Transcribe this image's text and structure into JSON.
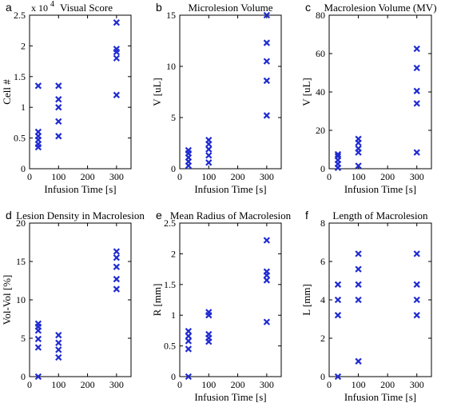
{
  "chart_data": [
    {
      "type": "scatter",
      "panel_letter": "a",
      "title": "Visual Score",
      "exponent_label": "x 10",
      "exponent_power": "4",
      "xlabel": "Infusion Time [s]",
      "ylabel": "Cell #",
      "xlim": [
        0,
        350
      ],
      "ylim": [
        0,
        2.5
      ],
      "xticks": [
        0,
        100,
        200,
        300
      ],
      "yticks": [
        0,
        0.5,
        1,
        1.5,
        2,
        2.5
      ],
      "ytick_labels": [
        "0",
        "0.5",
        "1",
        "1.5",
        "2",
        "2.5"
      ],
      "points": [
        {
          "x": 30,
          "y": 0.35
        },
        {
          "x": 30,
          "y": 0.4
        },
        {
          "x": 30,
          "y": 0.47
        },
        {
          "x": 30,
          "y": 0.53
        },
        {
          "x": 30,
          "y": 0.6
        },
        {
          "x": 30,
          "y": 1.35
        },
        {
          "x": 100,
          "y": 0.53
        },
        {
          "x": 100,
          "y": 0.77
        },
        {
          "x": 100,
          "y": 1.0
        },
        {
          "x": 100,
          "y": 1.13
        },
        {
          "x": 100,
          "y": 1.35
        },
        {
          "x": 300,
          "y": 1.2
        },
        {
          "x": 300,
          "y": 1.8
        },
        {
          "x": 300,
          "y": 1.9
        },
        {
          "x": 300,
          "y": 1.95
        },
        {
          "x": 300,
          "y": 2.38
        }
      ]
    },
    {
      "type": "scatter",
      "panel_letter": "b",
      "title": "Microlesion Volume",
      "xlabel": "Infusion Time [s]",
      "ylabel": "V [uL]",
      "xlim": [
        0,
        350
      ],
      "ylim": [
        0,
        15
      ],
      "xticks": [
        0,
        100,
        200,
        300
      ],
      "yticks": [
        0,
        5,
        10,
        15
      ],
      "ytick_labels": [
        "0",
        "5",
        "10",
        "15"
      ],
      "points": [
        {
          "x": 30,
          "y": 0.3
        },
        {
          "x": 30,
          "y": 0.7
        },
        {
          "x": 30,
          "y": 1.1
        },
        {
          "x": 30,
          "y": 1.5
        },
        {
          "x": 30,
          "y": 1.8
        },
        {
          "x": 100,
          "y": 0.6
        },
        {
          "x": 100,
          "y": 1.3
        },
        {
          "x": 100,
          "y": 1.9
        },
        {
          "x": 100,
          "y": 2.4
        },
        {
          "x": 100,
          "y": 2.8
        },
        {
          "x": 300,
          "y": 5.2
        },
        {
          "x": 300,
          "y": 8.6
        },
        {
          "x": 300,
          "y": 10.5
        },
        {
          "x": 300,
          "y": 12.3
        },
        {
          "x": 300,
          "y": 15.0
        }
      ]
    },
    {
      "type": "scatter",
      "panel_letter": "c",
      "title": "Macrolesion Volume (MV)",
      "xlabel": "Infusion Time [s]",
      "ylabel": "V [uL]",
      "xlim": [
        0,
        350
      ],
      "ylim": [
        0,
        80
      ],
      "xticks": [
        0,
        100,
        200,
        300
      ],
      "yticks": [
        0,
        20,
        40,
        60,
        80
      ],
      "ytick_labels": [
        "0",
        "20",
        "40",
        "60",
        "80"
      ],
      "points": [
        {
          "x": 30,
          "y": 0.5
        },
        {
          "x": 30,
          "y": 2.5
        },
        {
          "x": 30,
          "y": 4.5
        },
        {
          "x": 30,
          "y": 6.5
        },
        {
          "x": 30,
          "y": 7.5
        },
        {
          "x": 100,
          "y": 1.5
        },
        {
          "x": 100,
          "y": 8.5
        },
        {
          "x": 100,
          "y": 10.5
        },
        {
          "x": 100,
          "y": 13.5
        },
        {
          "x": 100,
          "y": 15.5
        },
        {
          "x": 300,
          "y": 8.5
        },
        {
          "x": 300,
          "y": 34.0
        },
        {
          "x": 300,
          "y": 40.5
        },
        {
          "x": 300,
          "y": 52.5
        },
        {
          "x": 300,
          "y": 62.5
        }
      ]
    },
    {
      "type": "scatter",
      "panel_letter": "d",
      "title": "Lesion Density in Macrolesion",
      "xlabel": "",
      "ylabel": "Vol-Vol [%]",
      "xlim": [
        0,
        350
      ],
      "ylim": [
        0,
        20
      ],
      "xticks": [
        0,
        100,
        200,
        300
      ],
      "yticks": [
        0,
        5,
        10,
        15,
        20
      ],
      "ytick_labels": [
        "0",
        "5",
        "10",
        "15",
        "20"
      ],
      "points": [
        {
          "x": 30,
          "y": 0.0
        },
        {
          "x": 30,
          "y": 3.8
        },
        {
          "x": 30,
          "y": 4.9
        },
        {
          "x": 30,
          "y": 6.0
        },
        {
          "x": 30,
          "y": 6.5
        },
        {
          "x": 30,
          "y": 6.9
        },
        {
          "x": 100,
          "y": 2.5
        },
        {
          "x": 100,
          "y": 3.5
        },
        {
          "x": 100,
          "y": 4.4
        },
        {
          "x": 100,
          "y": 5.4
        },
        {
          "x": 300,
          "y": 11.4
        },
        {
          "x": 300,
          "y": 12.7
        },
        {
          "x": 300,
          "y": 14.3
        },
        {
          "x": 300,
          "y": 15.5
        },
        {
          "x": 300,
          "y": 16.3
        }
      ]
    },
    {
      "type": "scatter",
      "panel_letter": "e",
      "title": "Mean Radius of Macrolesion",
      "xlabel": "Infusion Time [s]",
      "ylabel": "R [mm]",
      "xlim": [
        0,
        350
      ],
      "ylim": [
        0,
        2.5
      ],
      "xticks": [
        0,
        100,
        200,
        300
      ],
      "yticks": [
        0,
        0.5,
        1,
        1.5,
        2,
        2.5
      ],
      "ytick_labels": [
        "0",
        "0.5",
        "1",
        "1.5",
        "2",
        "2.5"
      ],
      "points": [
        {
          "x": 30,
          "y": 0.0
        },
        {
          "x": 30,
          "y": 0.45
        },
        {
          "x": 30,
          "y": 0.58
        },
        {
          "x": 30,
          "y": 0.66
        },
        {
          "x": 30,
          "y": 0.74
        },
        {
          "x": 100,
          "y": 0.57
        },
        {
          "x": 100,
          "y": 0.63
        },
        {
          "x": 100,
          "y": 0.69
        },
        {
          "x": 100,
          "y": 1.0
        },
        {
          "x": 100,
          "y": 1.05
        },
        {
          "x": 300,
          "y": 0.89
        },
        {
          "x": 300,
          "y": 1.57
        },
        {
          "x": 300,
          "y": 1.65
        },
        {
          "x": 300,
          "y": 1.71
        },
        {
          "x": 300,
          "y": 2.22
        }
      ]
    },
    {
      "type": "scatter",
      "panel_letter": "f",
      "title": "Length of Macrolesion",
      "xlabel": "Infusion Time [s]",
      "ylabel": "L [mm]",
      "xlim": [
        0,
        350
      ],
      "ylim": [
        0,
        8
      ],
      "xticks": [
        0,
        100,
        200,
        300
      ],
      "yticks": [
        0,
        2,
        4,
        6,
        8
      ],
      "ytick_labels": [
        "0",
        "2",
        "4",
        "6",
        "8"
      ],
      "points": [
        {
          "x": 30,
          "y": 0.0
        },
        {
          "x": 30,
          "y": 3.2
        },
        {
          "x": 30,
          "y": 4.0
        },
        {
          "x": 30,
          "y": 4.8
        },
        {
          "x": 100,
          "y": 0.8
        },
        {
          "x": 100,
          "y": 4.0
        },
        {
          "x": 100,
          "y": 4.8
        },
        {
          "x": 100,
          "y": 5.6
        },
        {
          "x": 100,
          "y": 6.4
        },
        {
          "x": 300,
          "y": 3.2
        },
        {
          "x": 300,
          "y": 4.0
        },
        {
          "x": 300,
          "y": 4.8
        },
        {
          "x": 300,
          "y": 6.4
        }
      ]
    }
  ]
}
